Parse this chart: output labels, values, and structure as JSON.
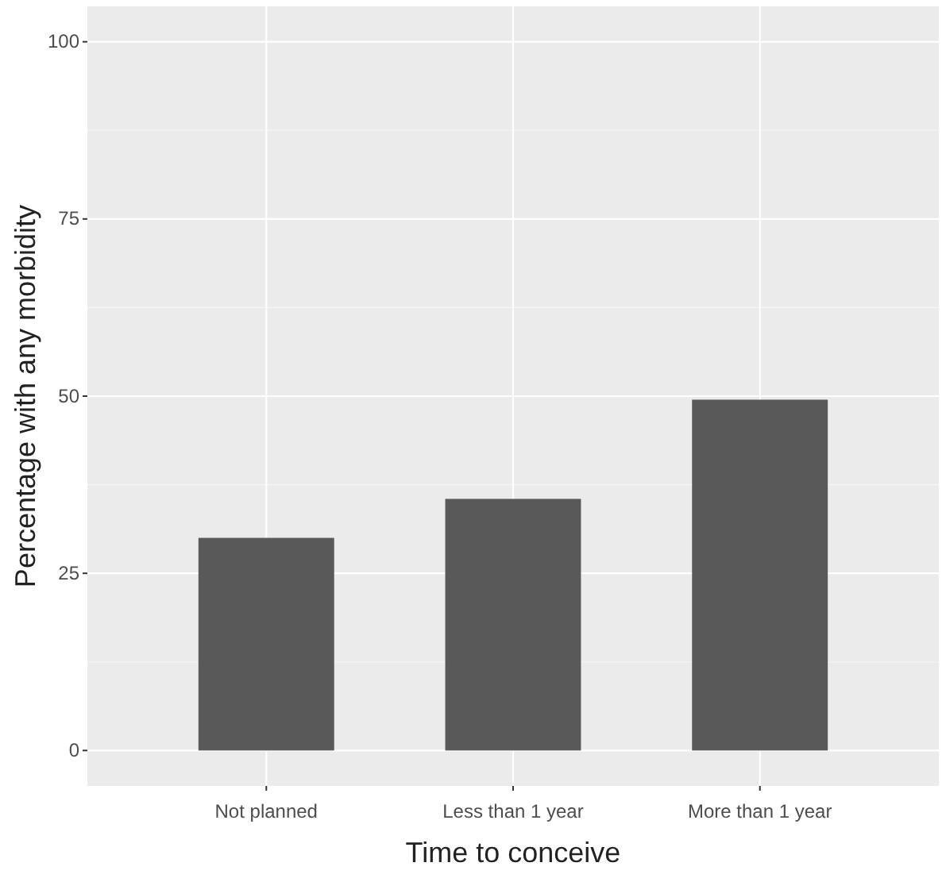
{
  "chart_data": {
    "type": "bar",
    "xlabel": "Time to conceive",
    "ylabel": "Percentage with any morbidity",
    "categories": [
      "Not planned",
      "Less than 1 year",
      "More than 1 year"
    ],
    "values": [
      30,
      35.5,
      49.5
    ],
    "color": "#595959",
    "ylim": [
      -5,
      105
    ],
    "yticks": [
      0,
      25,
      50,
      75,
      100
    ],
    "grid": true
  }
}
